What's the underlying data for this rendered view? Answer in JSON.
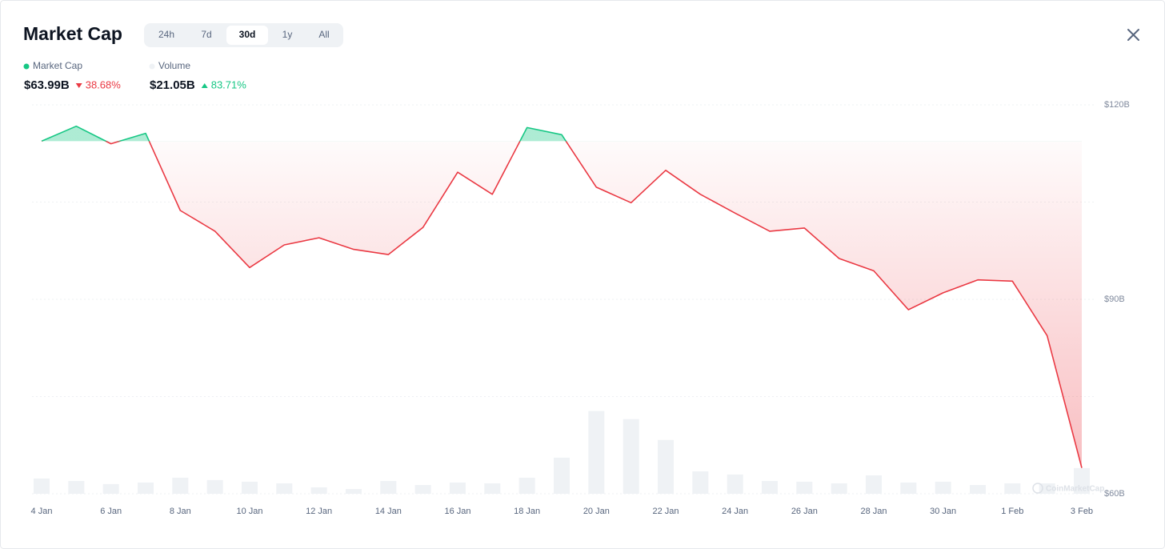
{
  "header": {
    "title": "Market Cap",
    "tabs": [
      "24h",
      "7d",
      "30d",
      "1y",
      "All"
    ],
    "active_tab": 2
  },
  "chart_data": {
    "type": "line",
    "categories": [
      "4 Jan",
      null,
      "6 Jan",
      null,
      "8 Jan",
      null,
      "10 Jan",
      null,
      "12 Jan",
      null,
      "14 Jan",
      null,
      "16 Jan",
      null,
      "18 Jan",
      null,
      "20 Jan",
      null,
      "22 Jan",
      null,
      "24 Jan",
      null,
      "26 Jan",
      null,
      "28 Jan",
      null,
      "30 Jan",
      null,
      "1 Feb",
      null,
      "3 Feb"
    ],
    "series": [
      {
        "name": "Market Cap",
        "up_color": "#16c784",
        "down_color": "#ea3943",
        "values": [
          114.4,
          116.7,
          114.0,
          115.6,
          103.7,
          100.5,
          94.9,
          98.4,
          99.5,
          97.7,
          96.9,
          101.1,
          109.6,
          106.2,
          116.5,
          115.4,
          107.3,
          104.9,
          109.9,
          106.2,
          103.3,
          100.5,
          101.0,
          96.3,
          94.4,
          88.4,
          91.0,
          93.0,
          92.8,
          84.4,
          63.99
        ],
        "latest_label": "$63.99B",
        "change_label": "38.68%",
        "change_direction": "down"
      },
      {
        "name": "Volume",
        "color": "#eff2f5",
        "axis": "y2",
        "values": [
          12.5,
          10.5,
          7.9,
          9.2,
          13.2,
          11.2,
          9.9,
          8.6,
          5.3,
          3.9,
          10.5,
          7.2,
          9.2,
          8.6,
          13.2,
          29.6,
          67.8,
          61.2,
          44.1,
          18.4,
          15.8,
          10.5,
          9.9,
          8.6,
          15.1,
          9.2,
          9.9,
          7.2,
          8.6,
          8.6,
          21.05
        ],
        "latest_label": "$21.05B",
        "change_label": "83.71%",
        "change_direction": "up"
      }
    ],
    "ylim": [
      60,
      120
    ],
    "yticks": [
      {
        "value": 60,
        "label": "$60B"
      },
      {
        "value": 75,
        "label": null
      },
      {
        "value": 90,
        "label": "$90B"
      },
      {
        "value": 105,
        "label": null
      },
      {
        "value": 120,
        "label": "$120B"
      }
    ],
    "y2lim": [
      0,
      80
    ],
    "grid": true,
    "watermark": "CoinMarketCap"
  }
}
